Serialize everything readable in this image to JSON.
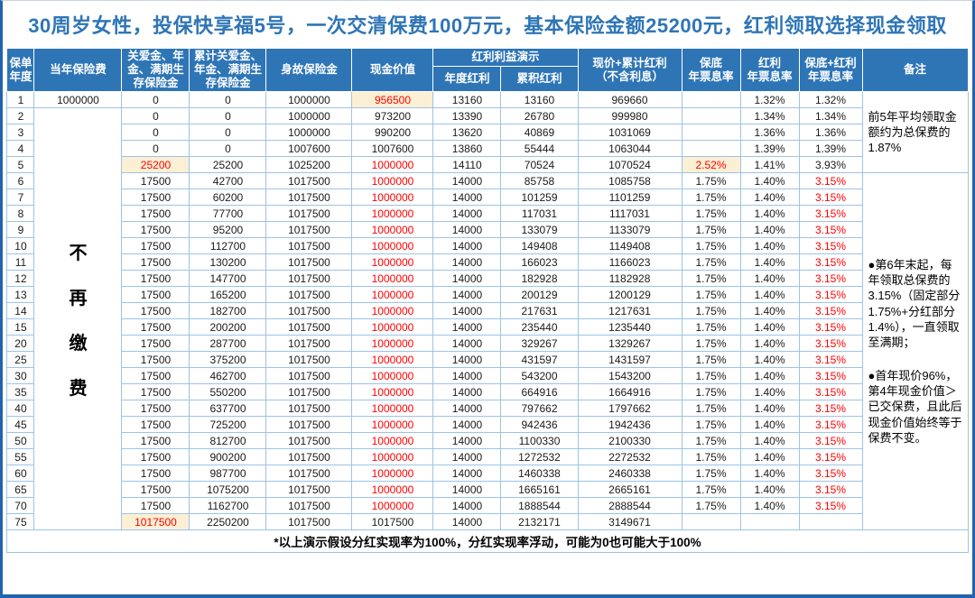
{
  "title": "30周岁女性，投保快享福5号，一次交清保费100万元，基本保险金额25200元，红利领取选择现金领取",
  "colors": {
    "header_bg": "#2E75B6",
    "title_text": "#2E75B6",
    "grid_line": "#9DC3E6",
    "frame": "#2263AC",
    "red_text": "#FF0000",
    "highlight_bg": "#FCF0D4"
  },
  "table": {
    "headers": {
      "policy_year": "保单\n年度",
      "annual_premium": "当年保险费",
      "care_benefit": "关爱金、年\n金、满期生\n存保险金",
      "cum_care_benefit": "累计关爱金、\n年金、满期生\n存保险金",
      "death_benefit": "身故保险金",
      "cash_value": "现金价值",
      "dividend_group": "红利利益演示",
      "annual_dividend": "年度红利",
      "cum_dividend": "累积红利",
      "cash_plus_dividend": "现价+累计红利\n（不含利息）",
      "guaranteed_rate": "保底\n年票息率",
      "dividend_rate": "红利\n年票息率",
      "total_rate": "保底+红利\n年票息率",
      "remark": "备注"
    },
    "column_keys": [
      "policy_year",
      "annual_premium",
      "care_benefit",
      "cum_care_benefit",
      "death_benefit",
      "cash_value",
      "annual_dividend",
      "cum_dividend",
      "cash_plus_dividend",
      "guaranteed_rate",
      "dividend_rate",
      "total_rate"
    ],
    "no_more_premium": "不再缴费",
    "remark_first5": "前5年平均领取金额约为总保费的1.87%",
    "remark_rest": [
      "●第6年末起，每年领取总保费的3.15%（固定部分1.75%+分红部分1.4%），一直领取至满期；",
      "●首年现价96%，第4年现金价值＞已交保费，且此后现金价值始终等于保费不变。"
    ],
    "rows": [
      {
        "cells": [
          "1",
          "1000000",
          "0",
          "0",
          "1000000",
          "956500",
          "13160",
          "13160",
          "969660",
          "",
          "1.32%",
          "1.32%"
        ],
        "styles": {
          "5": "hl"
        }
      },
      {
        "cells": [
          "2",
          "",
          "0",
          "0",
          "1000000",
          "973200",
          "13390",
          "26780",
          "999980",
          "",
          "1.34%",
          "1.34%"
        ],
        "styles": {}
      },
      {
        "cells": [
          "3",
          "",
          "0",
          "0",
          "1000000",
          "990200",
          "13620",
          "40869",
          "1031069",
          "",
          "1.36%",
          "1.36%"
        ],
        "styles": {}
      },
      {
        "cells": [
          "4",
          "",
          "0",
          "0",
          "1007600",
          "1007600",
          "13860",
          "55444",
          "1063044",
          "",
          "1.39%",
          "1.39%"
        ],
        "styles": {}
      },
      {
        "cells": [
          "5",
          "",
          "25200",
          "25200",
          "1025200",
          "1000000",
          "14110",
          "70524",
          "1070524",
          "2.52%",
          "1.41%",
          "3.93%"
        ],
        "styles": {
          "2": "hl",
          "5": "red",
          "9": "hl"
        }
      },
      {
        "cells": [
          "6",
          "",
          "17500",
          "42700",
          "1017500",
          "1000000",
          "14000",
          "85758",
          "1085758",
          "1.75%",
          "1.40%",
          "3.15%"
        ],
        "styles": {
          "5": "red",
          "11": "red"
        }
      },
      {
        "cells": [
          "7",
          "",
          "17500",
          "60200",
          "1017500",
          "1000000",
          "14000",
          "101259",
          "1101259",
          "1.75%",
          "1.40%",
          "3.15%"
        ],
        "styles": {
          "5": "red",
          "11": "red"
        }
      },
      {
        "cells": [
          "8",
          "",
          "17500",
          "77700",
          "1017500",
          "1000000",
          "14000",
          "117031",
          "1117031",
          "1.75%",
          "1.40%",
          "3.15%"
        ],
        "styles": {
          "5": "red",
          "11": "red"
        }
      },
      {
        "cells": [
          "9",
          "",
          "17500",
          "95200",
          "1017500",
          "1000000",
          "14000",
          "133079",
          "1133079",
          "1.75%",
          "1.40%",
          "3.15%"
        ],
        "styles": {
          "5": "red",
          "11": "red"
        }
      },
      {
        "cells": [
          "10",
          "",
          "17500",
          "112700",
          "1017500",
          "1000000",
          "14000",
          "149408",
          "1149408",
          "1.75%",
          "1.40%",
          "3.15%"
        ],
        "styles": {
          "5": "red",
          "11": "red"
        }
      },
      {
        "cells": [
          "11",
          "",
          "17500",
          "130200",
          "1017500",
          "1000000",
          "14000",
          "166023",
          "1166023",
          "1.75%",
          "1.40%",
          "3.15%"
        ],
        "styles": {
          "5": "red",
          "11": "red"
        }
      },
      {
        "cells": [
          "12",
          "",
          "17500",
          "147700",
          "1017500",
          "1000000",
          "14000",
          "182928",
          "1182928",
          "1.75%",
          "1.40%",
          "3.15%"
        ],
        "styles": {
          "5": "red",
          "11": "red"
        }
      },
      {
        "cells": [
          "13",
          "",
          "17500",
          "165200",
          "1017500",
          "1000000",
          "14000",
          "200129",
          "1200129",
          "1.75%",
          "1.40%",
          "3.15%"
        ],
        "styles": {
          "5": "red",
          "11": "red"
        }
      },
      {
        "cells": [
          "14",
          "",
          "17500",
          "182700",
          "1017500",
          "1000000",
          "14000",
          "217631",
          "1217631",
          "1.75%",
          "1.40%",
          "3.15%"
        ],
        "styles": {
          "5": "red",
          "11": "red"
        }
      },
      {
        "cells": [
          "15",
          "",
          "17500",
          "200200",
          "1017500",
          "1000000",
          "14000",
          "235440",
          "1235440",
          "1.75%",
          "1.40%",
          "3.15%"
        ],
        "styles": {
          "5": "red",
          "11": "red"
        }
      },
      {
        "cells": [
          "20",
          "",
          "17500",
          "287700",
          "1017500",
          "1000000",
          "14000",
          "329267",
          "1329267",
          "1.75%",
          "1.40%",
          "3.15%"
        ],
        "styles": {
          "5": "red",
          "11": "red"
        }
      },
      {
        "cells": [
          "25",
          "",
          "17500",
          "375200",
          "1017500",
          "1000000",
          "14000",
          "431597",
          "1431597",
          "1.75%",
          "1.40%",
          "3.15%"
        ],
        "styles": {
          "5": "red",
          "11": "red"
        }
      },
      {
        "cells": [
          "30",
          "",
          "17500",
          "462700",
          "1017500",
          "1000000",
          "14000",
          "543200",
          "1543200",
          "1.75%",
          "1.40%",
          "3.15%"
        ],
        "styles": {
          "5": "red",
          "11": "red"
        }
      },
      {
        "cells": [
          "35",
          "",
          "17500",
          "550200",
          "1017500",
          "1000000",
          "14000",
          "664916",
          "1664916",
          "1.75%",
          "1.40%",
          "3.15%"
        ],
        "styles": {
          "5": "red",
          "11": "red"
        }
      },
      {
        "cells": [
          "40",
          "",
          "17500",
          "637700",
          "1017500",
          "1000000",
          "14000",
          "797662",
          "1797662",
          "1.75%",
          "1.40%",
          "3.15%"
        ],
        "styles": {
          "5": "red",
          "11": "red"
        }
      },
      {
        "cells": [
          "45",
          "",
          "17500",
          "725200",
          "1017500",
          "1000000",
          "14000",
          "942436",
          "1942436",
          "1.75%",
          "1.40%",
          "3.15%"
        ],
        "styles": {
          "5": "red",
          "11": "red"
        }
      },
      {
        "cells": [
          "50",
          "",
          "17500",
          "812700",
          "1017500",
          "1000000",
          "14000",
          "1100330",
          "2100330",
          "1.75%",
          "1.40%",
          "3.15%"
        ],
        "styles": {
          "5": "red",
          "11": "red"
        }
      },
      {
        "cells": [
          "55",
          "",
          "17500",
          "900200",
          "1017500",
          "1000000",
          "14000",
          "1272532",
          "2272532",
          "1.75%",
          "1.40%",
          "3.15%"
        ],
        "styles": {
          "5": "red",
          "11": "red"
        }
      },
      {
        "cells": [
          "60",
          "",
          "17500",
          "987700",
          "1017500",
          "1000000",
          "14000",
          "1460338",
          "2460338",
          "1.75%",
          "1.40%",
          "3.15%"
        ],
        "styles": {
          "5": "red",
          "11": "red"
        }
      },
      {
        "cells": [
          "65",
          "",
          "17500",
          "1075200",
          "1017500",
          "1000000",
          "14000",
          "1665161",
          "2665161",
          "1.75%",
          "1.40%",
          "3.15%"
        ],
        "styles": {
          "5": "red",
          "11": "red"
        }
      },
      {
        "cells": [
          "70",
          "",
          "17500",
          "1162700",
          "1017500",
          "1000000",
          "14000",
          "1888544",
          "2888544",
          "1.75%",
          "1.40%",
          "3.15%"
        ],
        "styles": {
          "5": "red",
          "11": "red"
        }
      },
      {
        "cells": [
          "75",
          "",
          "1017500",
          "2250200",
          "1017500",
          "1017500",
          "14000",
          "2132171",
          "3149671",
          "",
          "",
          ""
        ],
        "styles": {
          "2": "hl"
        }
      }
    ],
    "footnote": "*以上演示假设分红实现率为100%，分红实现率浮动，可能为0也可能大于100%"
  }
}
